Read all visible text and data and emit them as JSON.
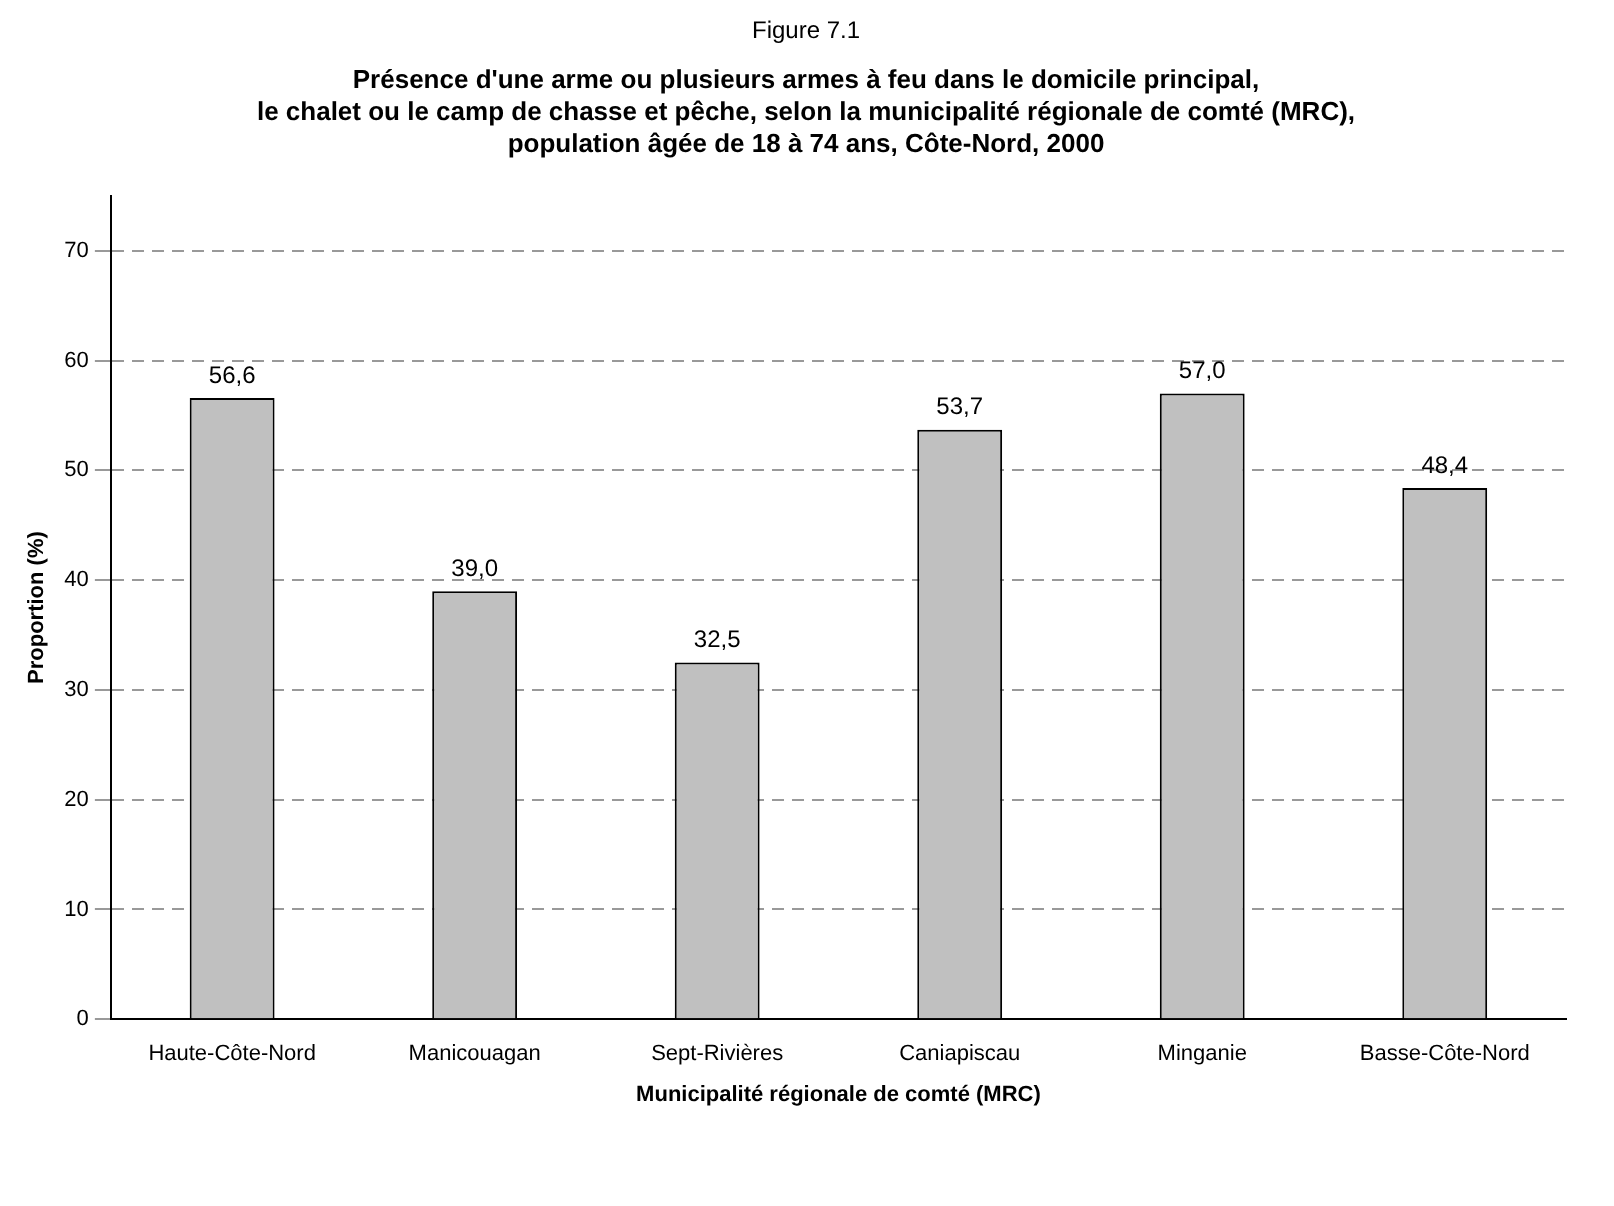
{
  "chart_data": {
    "type": "bar",
    "title": "Figure 7.1",
    "subtitle": "Présence d'une arme ou plusieurs armes à feu dans le domicile principal,\nle chalet ou le camp de chasse et pêche, selon la municipalité régionale de comté (MRC),\npopulation âgée de 18 à 74 ans, Côte-Nord, 2000",
    "xlabel": "Municipalité régionale de comté (MRC)",
    "ylabel": "Proportion (%)",
    "categories": [
      "Haute-Côte-Nord",
      "Manicouagan",
      "Sept-Rivières",
      "Caniapiscau",
      "Minganie",
      "Basse-Côte-Nord"
    ],
    "values": [
      56.6,
      39.0,
      32.5,
      53.7,
      57.0,
      48.4
    ],
    "value_labels": [
      "56,6",
      "39,0",
      "32,5",
      "53,7",
      "57,0",
      "48,4"
    ],
    "color": "#c0c0c0",
    "ylim": [
      0,
      75
    ],
    "yticks": [
      0,
      10,
      20,
      30,
      40,
      50,
      60,
      70
    ],
    "grid": "y",
    "legend": false
  }
}
